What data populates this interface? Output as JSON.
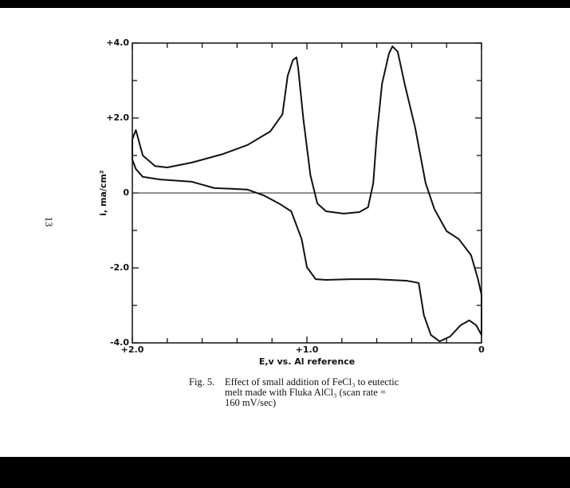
{
  "page_number": "13",
  "caption": {
    "label": "Fig. 5.",
    "lines": [
      "Effect of small addition of FeCl₃ to eutectic",
      "melt made with Fluka AlCl₃ (scan rate =",
      "160 mV/sec)"
    ]
  },
  "chart_data": {
    "type": "line",
    "x_label": "E,v vs. Al reference",
    "y_label": "i, ma/cm²",
    "color": "#111111",
    "zero_line": true,
    "xlim": [
      2.0,
      0
    ],
    "ylim": [
      -4,
      4
    ],
    "xticks": [
      {
        "value": 2,
        "label": "+2.0"
      },
      {
        "value": 1,
        "label": "+1.0"
      },
      0
    ],
    "x_minor_ticks": [
      1.8,
      1.6,
      1.4,
      1.2,
      0.8,
      0.6,
      0.4,
      0.2
    ],
    "yticks": [
      {
        "value": 4,
        "label": "+4.0"
      },
      {
        "value": 2,
        "label": "+2.0"
      },
      0,
      {
        "value": -2,
        "label": "-2.0"
      },
      {
        "value": -4,
        "label": "-4.0"
      }
    ],
    "y_minor_ticks": [
      3,
      1,
      -1,
      -3
    ],
    "x": [
      2.0,
      1.98,
      1.94,
      1.87,
      1.8,
      1.66,
      1.48,
      1.34,
      1.21,
      1.14,
      1.11,
      1.08,
      1.06,
      1.05,
      1.02,
      0.98,
      0.94,
      0.89,
      0.79,
      0.7,
      0.65,
      0.62,
      0.6,
      0.57,
      0.53,
      0.51,
      0.48,
      0.44,
      0.38,
      0.32,
      0.27,
      0.2,
      0.13,
      0.06,
      0.02,
      0,
      0,
      0.03,
      0.07,
      0.12,
      0.18,
      0.24,
      0.29,
      0.33,
      0.36,
      0.43,
      0.61,
      0.75,
      0.89,
      0.95,
      1.0,
      1.03,
      1.09,
      1.16,
      1.25,
      1.34,
      1.43,
      1.53,
      1.66,
      1.84,
      1.94,
      1.98,
      2.0,
      2.0
    ],
    "values": [
      1.43,
      1.68,
      1.0,
      0.72,
      0.68,
      0.81,
      1.04,
      1.28,
      1.64,
      2.1,
      3.13,
      3.55,
      3.62,
      3.34,
      1.96,
      0.47,
      -0.28,
      -0.49,
      -0.55,
      -0.51,
      -0.38,
      0.26,
      1.53,
      2.91,
      3.72,
      3.91,
      3.77,
      2.91,
      1.74,
      0.26,
      -0.43,
      -1.02,
      -1.23,
      -1.66,
      -2.3,
      -2.72,
      -3.79,
      -3.53,
      -3.4,
      -3.53,
      -3.83,
      -3.96,
      -3.79,
      -3.26,
      -2.4,
      -2.34,
      -2.3,
      -2.3,
      -2.32,
      -2.3,
      -1.98,
      -1.23,
      -0.49,
      -0.28,
      -0.06,
      0.09,
      0.11,
      0.13,
      0.3,
      0.36,
      0.43,
      0.64,
      0.89,
      1.43
    ]
  }
}
